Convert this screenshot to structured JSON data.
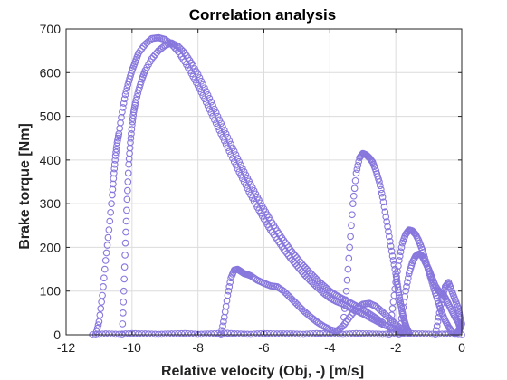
{
  "chart_data": {
    "type": "scatter",
    "title": "Correlation analysis",
    "xlabel": "Relative velocity (Obj, -) [m/s]",
    "ylabel": "Brake torque [Nm]",
    "xlim": [
      -12,
      0
    ],
    "ylim": [
      0,
      700
    ],
    "xticks": [
      -12,
      -10,
      -8,
      -6,
      -4,
      -2,
      0
    ],
    "yticks": [
      0,
      100,
      200,
      300,
      400,
      500,
      600,
      700
    ],
    "grid": true,
    "marker": "open-circle",
    "color": "#8877dd",
    "series": [
      {
        "x": [
          -11.1,
          -11.0,
          -10.9,
          -10.8,
          -10.7,
          -10.6,
          -10.55,
          -10.5,
          -10.45,
          -10.4,
          -10.3,
          -10.2,
          -10.1,
          -10.0,
          -9.9,
          -9.8,
          -9.6,
          -9.4,
          -9.2,
          -9.0,
          -8.8,
          -8.6,
          -8.4,
          -8.2,
          -8.0,
          -7.8,
          -7.6,
          -7.4,
          -7.2,
          -7.0,
          -6.8,
          -6.6,
          -6.4,
          -6.2,
          -6.0,
          -5.8,
          -5.6,
          -5.4,
          -5.2,
          -5.0,
          -4.8,
          -4.6,
          -4.4,
          -4.2,
          -4.0,
          -3.8,
          -3.6,
          -3.4,
          -3.2,
          -3.0,
          -2.8,
          -2.6,
          -2.4,
          -2.2,
          -2.0,
          -1.9,
          -1.8
        ],
        "y": [
          0,
          30,
          90,
          170,
          240,
          320,
          370,
          410,
          440,
          460,
          510,
          550,
          580,
          605,
          625,
          645,
          665,
          678,
          680,
          676,
          665,
          648,
          625,
          598,
          570,
          540,
          508,
          476,
          444,
          412,
          380,
          350,
          320,
          292,
          265,
          240,
          218,
          196,
          176,
          158,
          140,
          124,
          110,
          96,
          84,
          76,
          70,
          62,
          55,
          48,
          40,
          32,
          24,
          18,
          12,
          8,
          5
        ]
      },
      {
        "x": [
          -10.3,
          -10.25,
          -10.2,
          -10.15,
          -10.1,
          -10.05,
          -10.0,
          -9.95,
          -9.9,
          -9.8,
          -9.7,
          -9.6,
          -9.4,
          -9.2,
          -9.0,
          -8.8,
          -8.6,
          -8.4,
          -8.2,
          -8.0,
          -7.8,
          -7.6,
          -7.4,
          -7.2,
          -7.0,
          -6.8,
          -6.6,
          -6.4,
          -6.2,
          -6.0,
          -5.8,
          -5.6,
          -5.4,
          -5.2,
          -5.0,
          -4.8,
          -4.6,
          -4.4,
          -4.2,
          -4.0,
          -3.8,
          -3.6,
          -3.4,
          -3.2,
          -3.0,
          -2.8,
          -2.6,
          -2.4
        ],
        "y": [
          0,
          100,
          210,
          310,
          390,
          440,
          480,
          510,
          530,
          560,
          585,
          605,
          632,
          650,
          662,
          668,
          660,
          645,
          622,
          596,
          565,
          533,
          500,
          468,
          436,
          404,
          373,
          344,
          315,
          288,
          262,
          238,
          216,
          195,
          176,
          158,
          142,
          127,
          113,
          100,
          90,
          82,
          74,
          66,
          58,
          48,
          38,
          28
        ]
      },
      {
        "x": [
          -7.3,
          -7.2,
          -7.1,
          -7.0,
          -6.9,
          -6.8,
          -6.7,
          -6.6,
          -6.5,
          -6.4,
          -6.2,
          -6.0,
          -5.8,
          -5.6,
          -5.4,
          -5.2,
          -5.0,
          -4.8,
          -4.6,
          -4.4,
          -4.2,
          -4.0,
          -3.8,
          -3.6,
          -3.4,
          -3.2,
          -3.0,
          -2.8,
          -2.6,
          -2.4,
          -2.2,
          -2.0,
          -1.8
        ],
        "y": [
          0,
          40,
          90,
          130,
          148,
          150,
          145,
          140,
          138,
          135,
          125,
          118,
          112,
          110,
          100,
          85,
          70,
          55,
          42,
          30,
          20,
          12,
          8,
          20,
          40,
          60,
          70,
          72,
          65,
          52,
          38,
          24,
          12
        ]
      },
      {
        "x": [
          -3.6,
          -3.5,
          -3.4,
          -3.3,
          -3.2,
          -3.1,
          -3.0,
          -2.9,
          -2.8,
          -2.7,
          -2.6,
          -2.5,
          -2.4,
          -2.3,
          -2.2,
          -2.1,
          -2.0,
          -1.95,
          -1.9,
          -1.85,
          -1.8,
          -1.75,
          -1.7,
          -1.65,
          -1.6
        ],
        "y": [
          20,
          100,
          200,
          300,
          370,
          405,
          415,
          412,
          405,
          395,
          375,
          350,
          315,
          270,
          225,
          180,
          140,
          115,
          90,
          70,
          50,
          35,
          22,
          12,
          5
        ]
      },
      {
        "x": [
          -2.2,
          -2.1,
          -2.0,
          -1.9,
          -1.8,
          -1.7,
          -1.6,
          -1.5,
          -1.4,
          -1.3,
          -1.2,
          -1.1,
          -1.0,
          -0.9,
          -0.8,
          -0.7,
          -0.6,
          -0.5,
          -0.4,
          -0.3
        ],
        "y": [
          0,
          60,
          120,
          170,
          210,
          230,
          240,
          238,
          230,
          215,
          195,
          170,
          145,
          120,
          95,
          72,
          50,
          32,
          18,
          8
        ]
      },
      {
        "x": [
          -1.9,
          -1.8,
          -1.7,
          -1.6,
          -1.5,
          -1.4,
          -1.3,
          -1.2,
          -1.1,
          -1.0,
          -0.9,
          -0.8,
          -0.7,
          -0.6,
          -0.5,
          -0.4,
          -0.3,
          -0.2,
          -0.1,
          -0.05
        ],
        "y": [
          0,
          50,
          100,
          140,
          165,
          180,
          185,
          180,
          165,
          150,
          130,
          112,
          100,
          95,
          85,
          70,
          55,
          40,
          28,
          15
        ]
      },
      {
        "x": [
          -0.8,
          -0.7,
          -0.6,
          -0.5,
          -0.4,
          -0.3,
          -0.2,
          -0.1,
          -0.05,
          0.0,
          -0.05,
          -0.1,
          -0.15,
          -0.2
        ],
        "y": [
          0,
          40,
          80,
          110,
          120,
          100,
          80,
          60,
          40,
          25,
          15,
          8,
          4,
          2
        ]
      },
      {
        "x": [
          -11.2,
          -10.8,
          -10.4,
          -10.0,
          -9.6,
          -9.2,
          -8.8,
          -8.4,
          -8.0,
          -7.6,
          -7.2,
          -6.8,
          -6.4,
          -6.0,
          -5.6,
          -5.2,
          -4.8,
          -4.4,
          -4.0,
          -3.6,
          -3.2,
          -2.8,
          -2.4,
          -2.0,
          -1.6,
          -1.2,
          -0.8,
          -0.4,
          0.0
        ],
        "y": [
          0,
          2,
          1,
          3,
          2,
          1,
          2,
          3,
          1,
          2,
          4,
          2,
          1,
          3,
          2,
          2,
          1,
          3,
          2,
          1,
          3,
          2,
          1,
          2,
          3,
          2,
          1,
          2,
          0
        ]
      }
    ]
  }
}
